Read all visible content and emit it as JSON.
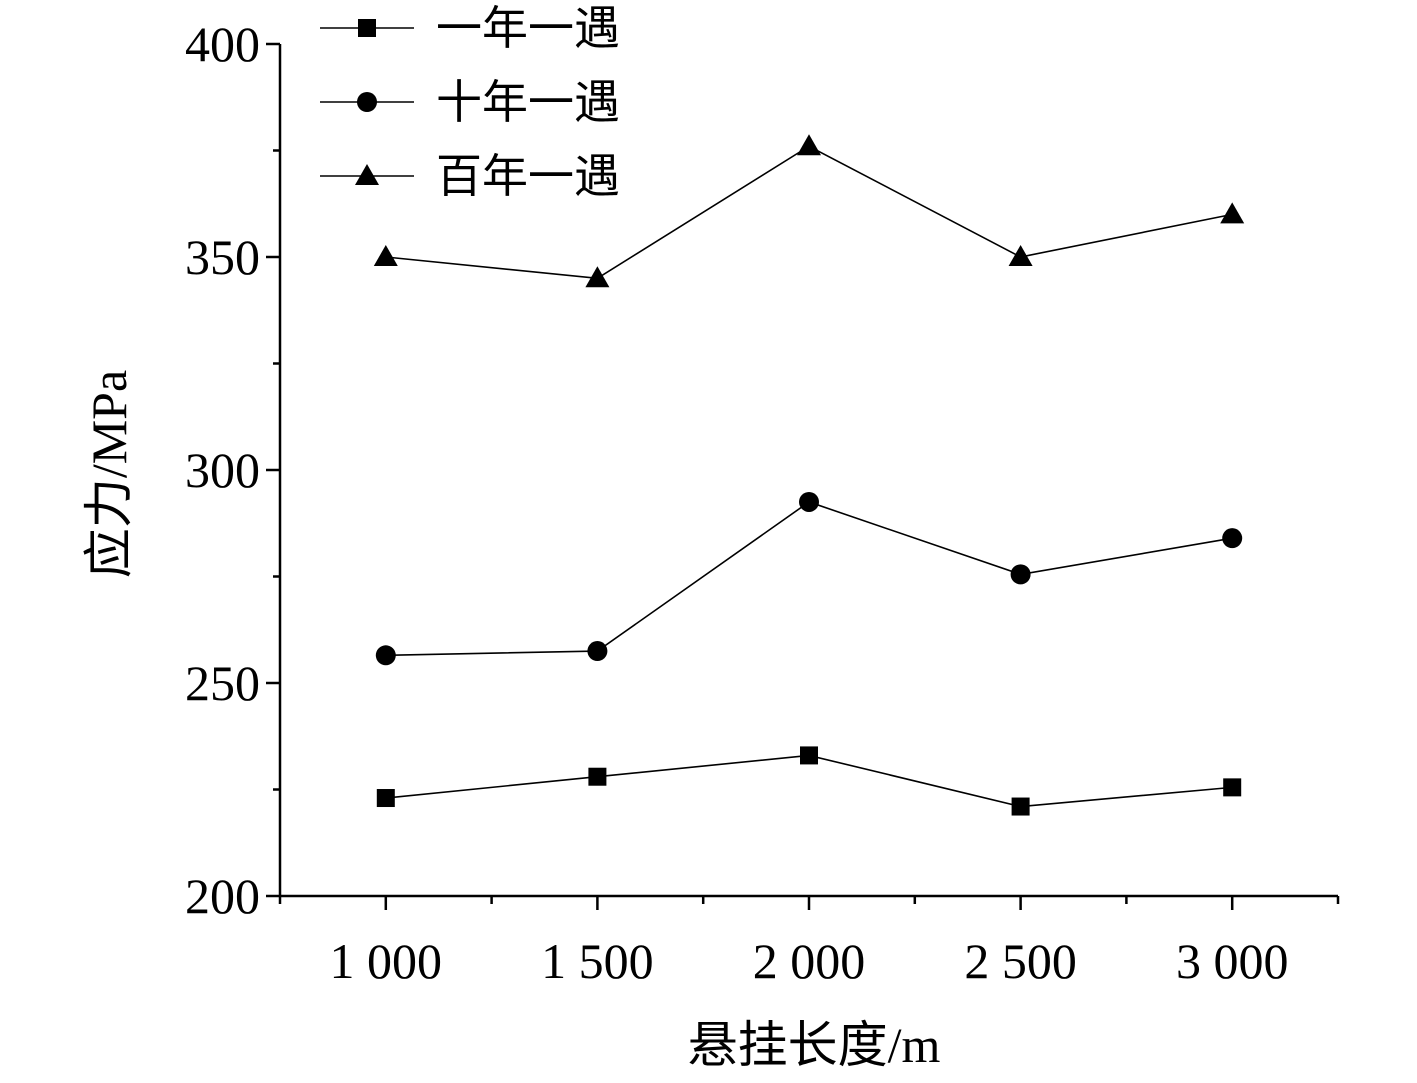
{
  "chart_data": {
    "type": "line",
    "x": [
      1000,
      1500,
      2000,
      2500,
      3000
    ],
    "x_tick_labels": [
      "1 000",
      "1 500",
      "2 000",
      "2 500",
      "3 000"
    ],
    "xlabel": "悬挂长度/m",
    "ylabel": "应力/MPa",
    "ylim": [
      200,
      400
    ],
    "xlim": [
      750,
      3250
    ],
    "y_ticks": [
      200,
      250,
      300,
      350,
      400
    ],
    "y_tick_labels": [
      "200",
      "250",
      "300",
      "350",
      "400"
    ],
    "grid": false,
    "legend_position": "top-left",
    "series": [
      {
        "name": "一年一遇",
        "marker": "square",
        "values": [
          223,
          228,
          233,
          221,
          225.5
        ]
      },
      {
        "name": "十年一遇",
        "marker": "circle",
        "values": [
          256.5,
          257.5,
          292.5,
          275.5,
          284
        ]
      },
      {
        "name": "百年一遇",
        "marker": "triangle",
        "values": [
          350,
          345,
          376,
          350,
          360
        ]
      }
    ],
    "colors": {
      "line": "#000000",
      "marker": "#000000"
    }
  }
}
